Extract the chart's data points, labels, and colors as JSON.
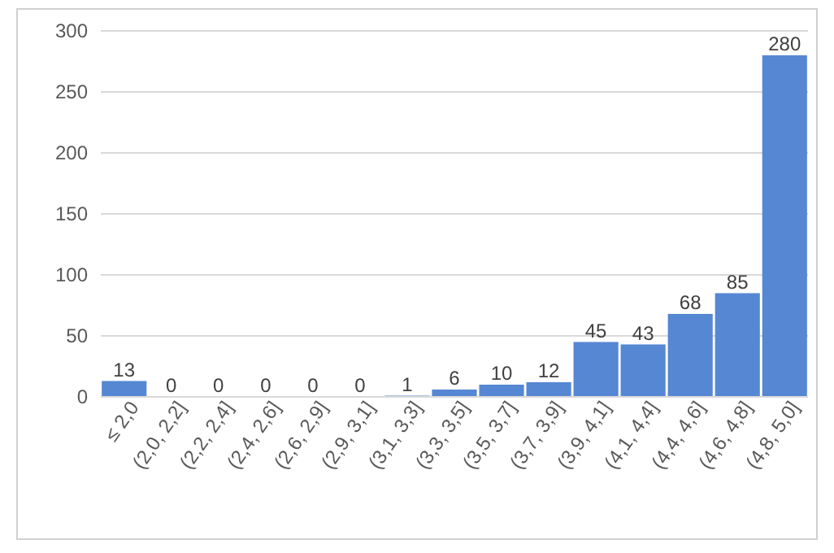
{
  "chart_data": {
    "type": "bar",
    "categories": [
      "≤ 2,0",
      "(2,0, 2,2]",
      "(2,2, 2,4]",
      "(2,4, 2,6]",
      "(2,6, 2,9]",
      "(2,9, 3,1]",
      "(3,1, 3,3]",
      "(3,3, 3,5]",
      "(3,5, 3,7]",
      "(3,7, 3,9]",
      "(3,9, 4,1]",
      "(4,1, 4,4]",
      "(4,4, 4,6]",
      "(4,6, 4,8]",
      "(4,8, 5,0]"
    ],
    "values": [
      13,
      0,
      0,
      0,
      0,
      0,
      1,
      6,
      10,
      12,
      45,
      43,
      68,
      85,
      280
    ],
    "color": "#5687d3",
    "ylim": [
      0,
      300
    ],
    "yticks": [
      0,
      50,
      100,
      150,
      200,
      250,
      300
    ],
    "grid": "y",
    "data_labels": true
  }
}
